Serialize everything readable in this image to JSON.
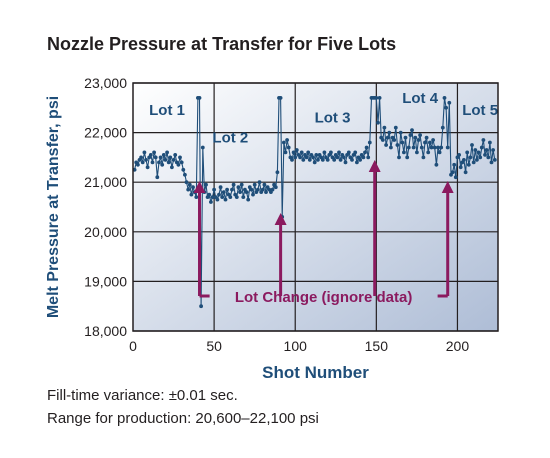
{
  "chart_data": {
    "type": "line",
    "title": "Nozzle Pressure at Transfer for Five Lots",
    "xlabel": "Shot Number",
    "ylabel": "Melt Pressure at Transfer, psi",
    "xlim": [
      0,
      225
    ],
    "ylim": [
      18000,
      23000
    ],
    "xticks": [
      0,
      50,
      100,
      150,
      200
    ],
    "xtick_labels": [
      "0",
      "50",
      "100",
      "150",
      "200"
    ],
    "yticks": [
      18000,
      19000,
      20000,
      21000,
      22000,
      23000
    ],
    "ytick_labels": [
      "18,000",
      "19,000",
      "20,000",
      "21,000",
      "22,000",
      "23,000"
    ],
    "grid": true,
    "series": [
      {
        "color": "#1f4e79",
        "points": [
          [
            1,
            21250
          ],
          [
            2,
            21400
          ],
          [
            3,
            21350
          ],
          [
            4,
            21450
          ],
          [
            5,
            21500
          ],
          [
            6,
            21400
          ],
          [
            7,
            21600
          ],
          [
            8,
            21450
          ],
          [
            9,
            21300
          ],
          [
            10,
            21500
          ],
          [
            11,
            21550
          ],
          [
            12,
            21400
          ],
          [
            13,
            21600
          ],
          [
            14,
            21500
          ],
          [
            15,
            21100
          ],
          [
            16,
            21400
          ],
          [
            17,
            21500
          ],
          [
            18,
            21350
          ],
          [
            19,
            21550
          ],
          [
            20,
            21450
          ],
          [
            21,
            21600
          ],
          [
            22,
            21400
          ],
          [
            23,
            21500
          ],
          [
            24,
            21300
          ],
          [
            25,
            21450
          ],
          [
            26,
            21550
          ],
          [
            27,
            21400
          ],
          [
            28,
            21350
          ],
          [
            29,
            21500
          ],
          [
            30,
            21400
          ],
          [
            31,
            21250
          ],
          [
            32,
            21150
          ],
          [
            33,
            21000
          ],
          [
            34,
            20850
          ],
          [
            35,
            20950
          ],
          [
            36,
            20750
          ],
          [
            37,
            20900
          ],
          [
            38,
            20800
          ],
          [
            39,
            20700
          ],
          [
            40,
            22700
          ],
          [
            41,
            22700
          ],
          [
            42,
            18500
          ],
          [
            43,
            21700
          ],
          [
            44,
            20800
          ],
          [
            45,
            20950
          ],
          [
            46,
            20700
          ],
          [
            47,
            20750
          ],
          [
            48,
            20600
          ],
          [
            49,
            20700
          ],
          [
            50,
            20850
          ],
          [
            51,
            20700
          ],
          [
            52,
            20650
          ],
          [
            53,
            20750
          ],
          [
            54,
            20900
          ],
          [
            55,
            20700
          ],
          [
            56,
            20800
          ],
          [
            57,
            20650
          ],
          [
            58,
            20850
          ],
          [
            59,
            20750
          ],
          [
            60,
            20700
          ],
          [
            61,
            20850
          ],
          [
            62,
            20950
          ],
          [
            63,
            20750
          ],
          [
            64,
            20700
          ],
          [
            65,
            20900
          ],
          [
            66,
            20800
          ],
          [
            67,
            20950
          ],
          [
            68,
            20700
          ],
          [
            69,
            20850
          ],
          [
            70,
            20800
          ],
          [
            71,
            20650
          ],
          [
            72,
            20900
          ],
          [
            73,
            20850
          ],
          [
            74,
            20750
          ],
          [
            75,
            20950
          ],
          [
            76,
            20800
          ],
          [
            77,
            20850
          ],
          [
            78,
            21000
          ],
          [
            79,
            20800
          ],
          [
            80,
            20850
          ],
          [
            81,
            20950
          ],
          [
            82,
            20800
          ],
          [
            83,
            20900
          ],
          [
            84,
            20850
          ],
          [
            85,
            20800
          ],
          [
            86,
            20850
          ],
          [
            87,
            20950
          ],
          [
            88,
            20900
          ],
          [
            89,
            21200
          ],
          [
            90,
            22700
          ],
          [
            91,
            22700
          ],
          [
            92,
            20300
          ],
          [
            93,
            21800
          ],
          [
            94,
            21600
          ],
          [
            95,
            21850
          ],
          [
            96,
            21700
          ],
          [
            97,
            21500
          ],
          [
            98,
            21450
          ],
          [
            99,
            21600
          ],
          [
            100,
            21500
          ],
          [
            101,
            21650
          ],
          [
            102,
            21550
          ],
          [
            103,
            21500
          ],
          [
            104,
            21600
          ],
          [
            105,
            21450
          ],
          [
            106,
            21550
          ],
          [
            107,
            21500
          ],
          [
            108,
            21600
          ],
          [
            109,
            21450
          ],
          [
            110,
            21550
          ],
          [
            111,
            21500
          ],
          [
            112,
            21400
          ],
          [
            113,
            21550
          ],
          [
            114,
            21450
          ],
          [
            115,
            21550
          ],
          [
            116,
            21500
          ],
          [
            117,
            21450
          ],
          [
            118,
            21600
          ],
          [
            119,
            21500
          ],
          [
            120,
            21450
          ],
          [
            121,
            21550
          ],
          [
            122,
            21600
          ],
          [
            123,
            21500
          ],
          [
            124,
            21450
          ],
          [
            125,
            21550
          ],
          [
            126,
            21500
          ],
          [
            127,
            21600
          ],
          [
            128,
            21450
          ],
          [
            129,
            21550
          ],
          [
            130,
            21500
          ],
          [
            131,
            21400
          ],
          [
            132,
            21550
          ],
          [
            133,
            21600
          ],
          [
            134,
            21500
          ],
          [
            135,
            21450
          ],
          [
            136,
            21550
          ],
          [
            137,
            21600
          ],
          [
            138,
            21400
          ],
          [
            139,
            21500
          ],
          [
            140,
            21450
          ],
          [
            141,
            21550
          ],
          [
            142,
            21500
          ],
          [
            143,
            21600
          ],
          [
            144,
            21700
          ],
          [
            145,
            21500
          ],
          [
            146,
            21800
          ],
          [
            147,
            22700
          ],
          [
            148,
            22700
          ],
          [
            149,
            22700
          ],
          [
            150,
            22700
          ],
          [
            151,
            22200
          ],
          [
            152,
            22700
          ],
          [
            153,
            21900
          ],
          [
            154,
            21850
          ],
          [
            155,
            22100
          ],
          [
            156,
            21750
          ],
          [
            157,
            21900
          ],
          [
            158,
            22000
          ],
          [
            159,
            21700
          ],
          [
            160,
            21900
          ],
          [
            161,
            21850
          ],
          [
            162,
            22100
          ],
          [
            163,
            21750
          ],
          [
            164,
            21500
          ],
          [
            165,
            22000
          ],
          [
            166,
            21800
          ],
          [
            167,
            21600
          ],
          [
            168,
            21900
          ],
          [
            169,
            21500
          ],
          [
            170,
            21700
          ],
          [
            171,
            21950
          ],
          [
            172,
            22050
          ],
          [
            173,
            21700
          ],
          [
            174,
            21900
          ],
          [
            175,
            21600
          ],
          [
            176,
            21850
          ],
          [
            177,
            21950
          ],
          [
            178,
            21700
          ],
          [
            179,
            21500
          ],
          [
            180,
            21800
          ],
          [
            181,
            21900
          ],
          [
            182,
            21600
          ],
          [
            183,
            21800
          ],
          [
            184,
            21700
          ],
          [
            185,
            21850
          ],
          [
            186,
            21700
          ],
          [
            187,
            21350
          ],
          [
            188,
            21700
          ],
          [
            189,
            21600
          ],
          [
            190,
            21700
          ],
          [
            191,
            22100
          ],
          [
            192,
            22700
          ],
          [
            193,
            22500
          ],
          [
            194,
            21700
          ],
          [
            195,
            22600
          ],
          [
            196,
            21150
          ],
          [
            197,
            21200
          ],
          [
            198,
            21350
          ],
          [
            199,
            21100
          ],
          [
            200,
            21500
          ],
          [
            201,
            21550
          ],
          [
            202,
            21300
          ],
          [
            203,
            21400
          ],
          [
            204,
            21450
          ],
          [
            205,
            21200
          ],
          [
            206,
            21600
          ],
          [
            207,
            21350
          ],
          [
            208,
            21500
          ],
          [
            209,
            21750
          ],
          [
            210,
            21400
          ],
          [
            211,
            21650
          ],
          [
            212,
            21450
          ],
          [
            213,
            21600
          ],
          [
            214,
            21500
          ],
          [
            215,
            21700
          ],
          [
            216,
            21850
          ],
          [
            217,
            21550
          ],
          [
            218,
            21650
          ],
          [
            219,
            21500
          ],
          [
            220,
            21800
          ],
          [
            221,
            21400
          ],
          [
            222,
            21650
          ],
          [
            223,
            21450
          ]
        ]
      }
    ],
    "annotations": {
      "lots": [
        {
          "label": "Lot 1",
          "x": 21,
          "y": 22350
        },
        {
          "label": "Lot 2",
          "x": 60,
          "y": 21800
        },
        {
          "label": "Lot 3",
          "x": 123,
          "y": 22200
        },
        {
          "label": "Lot 4",
          "x": 177,
          "y": 22600
        },
        {
          "label": "Lot 5",
          "x": 214,
          "y": 22350
        }
      ],
      "lot_change_label": "Lot Change (ignore data)",
      "lot_change_shots": [
        41,
        91,
        149,
        194
      ],
      "lot_change_color": "#8b1a5f"
    },
    "background_gradient": [
      "#ffffff",
      "#aebdd6"
    ],
    "line_color": "#1f4e79",
    "text_color": "#1f4e79"
  },
  "notes": [
    "Fill-time variance: ±0.01 sec.",
    "Range for production: 20,600–22,100 psi"
  ]
}
